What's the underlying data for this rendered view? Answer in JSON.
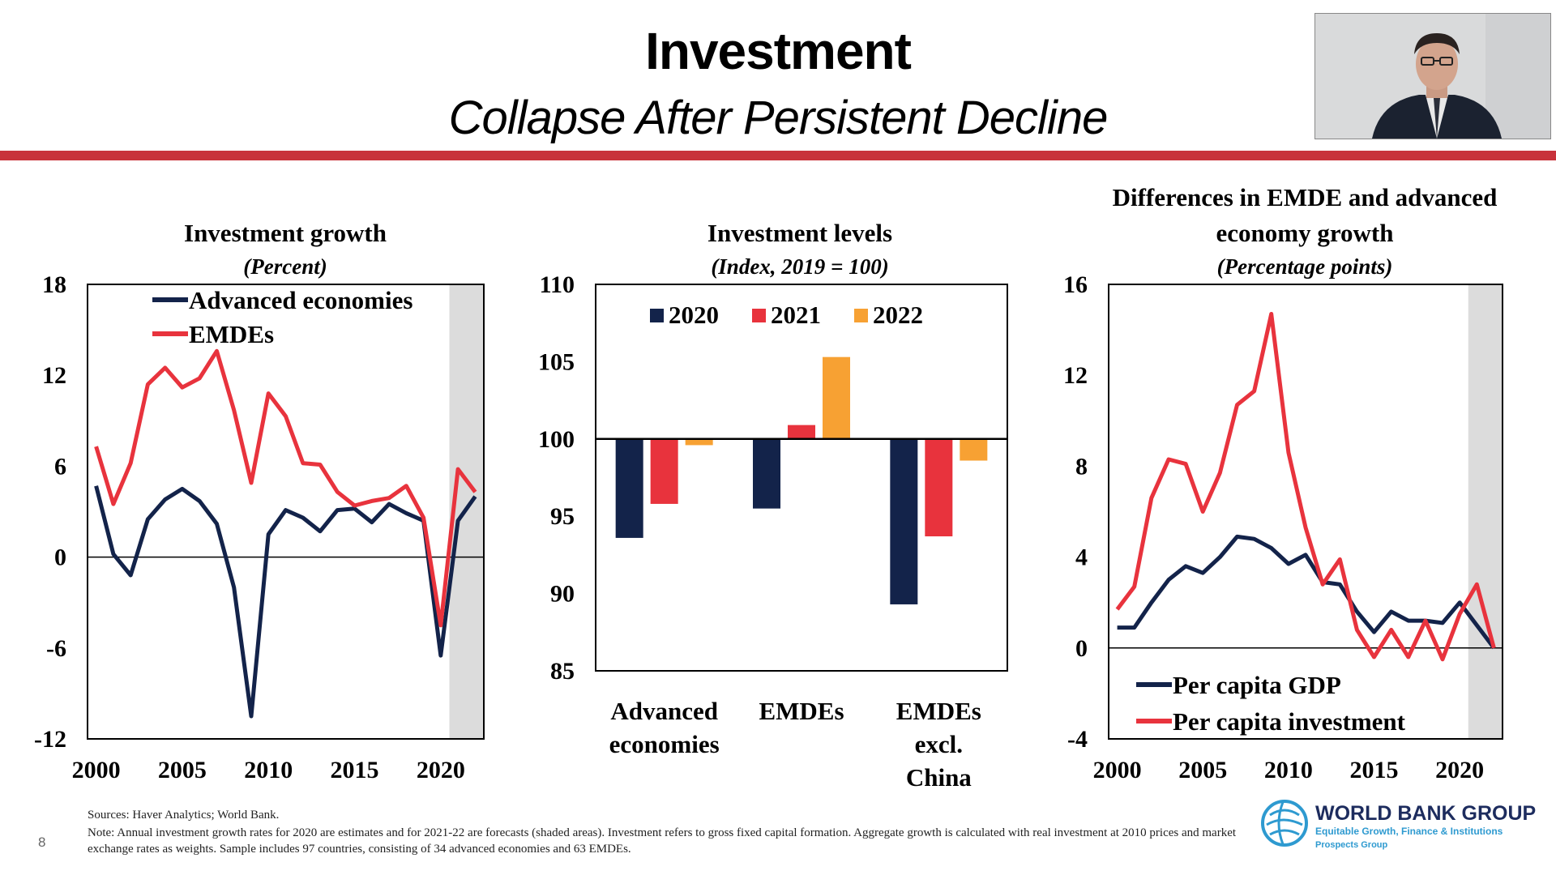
{
  "slide": {
    "title": "Investment",
    "subtitle": "Collapse After Persistent Decline",
    "sources": "Sources: Haver Analytics; World Bank.",
    "note": "Note: Annual investment growth rates for 2020 are estimates and for 2021-22 are forecasts (shaded areas). Investment refers to gross fixed capital formation. Aggregate growth is calculated with real investment at 2010 prices and market exchange rates as weights. Sample includes 97 countries, consisting of 34 advanced economies and 63 EMDEs.",
    "page_number": "8",
    "logo": {
      "name": "WORLD BANK GROUP",
      "tagline": "Equitable Growth, Finance & Institutions",
      "group": "Prospects Group"
    },
    "colors": {
      "accent_red": "#c8323b",
      "navy": "#13234a",
      "red": "#e8333d",
      "orange": "#f7a133",
      "shade": "#dcdcdc"
    }
  },
  "chart_data": [
    {
      "type": "line",
      "title": "Investment growth",
      "subtitle": "(Percent)",
      "ylim": [
        -12,
        18
      ],
      "yticks": [
        "18",
        "12",
        "6",
        "0",
        "-6",
        "-12"
      ],
      "xticks": [
        "2000",
        "2005",
        "2010",
        "2015",
        "2020"
      ],
      "shaded_from": 2020.5,
      "x": [
        2000,
        2001,
        2002,
        2003,
        2004,
        2005,
        2006,
        2007,
        2008,
        2009,
        2010,
        2011,
        2012,
        2013,
        2014,
        2015,
        2016,
        2017,
        2018,
        2019,
        2020,
        2021,
        2022
      ],
      "series": [
        {
          "name": "Advanced economies",
          "color": "#13234a",
          "values": [
            4.7,
            0.2,
            -1.2,
            2.5,
            3.8,
            4.5,
            3.7,
            2.2,
            -2.0,
            -10.5,
            1.5,
            3.1,
            2.6,
            1.7,
            3.1,
            3.2,
            2.3,
            3.5,
            2.9,
            2.4,
            -6.5,
            2.4,
            4.0
          ]
        },
        {
          "name": "EMDEs",
          "color": "#e8333d",
          "values": [
            7.3,
            3.5,
            6.2,
            11.4,
            12.5,
            11.2,
            11.8,
            13.6,
            9.7,
            4.9,
            10.8,
            9.3,
            6.2,
            6.1,
            4.3,
            3.4,
            3.7,
            3.9,
            4.7,
            2.6,
            -4.5,
            5.8,
            4.3
          ]
        }
      ]
    },
    {
      "type": "bar",
      "title": "Investment levels",
      "subtitle": "(Index, 2019 = 100)",
      "ylim": [
        85,
        110
      ],
      "yticks": [
        "110",
        "105",
        "100",
        "95",
        "90",
        "85"
      ],
      "baseline": 100,
      "categories": [
        "Advanced economies",
        "EMDEs",
        "EMDEs excl. China"
      ],
      "category_lines": [
        [
          "Advanced",
          "economies"
        ],
        [
          "EMDEs"
        ],
        [
          "EMDEs",
          "excl.",
          "China"
        ]
      ],
      "series": [
        {
          "name": "2020",
          "color": "#13234a",
          "values": [
            93.6,
            95.5,
            89.3
          ]
        },
        {
          "name": "2021",
          "color": "#e8333d",
          "values": [
            95.8,
            100.9,
            93.7
          ]
        },
        {
          "name": "2022",
          "color": "#f7a133",
          "values": [
            99.6,
            105.3,
            98.6
          ]
        }
      ]
    },
    {
      "type": "line",
      "title": "Differences in EMDE and advanced economy growth",
      "title_lines": [
        "Differences in EMDE and advanced",
        "economy growth"
      ],
      "subtitle": "(Percentage points)",
      "ylim": [
        -4,
        16
      ],
      "yticks": [
        "16",
        "12",
        "8",
        "4",
        "0",
        "-4"
      ],
      "xticks": [
        "2000",
        "2005",
        "2010",
        "2015",
        "2020"
      ],
      "shaded_from": 2020.5,
      "x": [
        2000,
        2001,
        2002,
        2003,
        2004,
        2005,
        2006,
        2007,
        2008,
        2009,
        2010,
        2011,
        2012,
        2013,
        2014,
        2015,
        2016,
        2017,
        2018,
        2019,
        2020,
        2021,
        2022
      ],
      "series": [
        {
          "name": "Per capita GDP",
          "color": "#13234a",
          "values": [
            0.9,
            0.9,
            2.0,
            3.0,
            3.6,
            3.3,
            4.0,
            4.9,
            4.8,
            4.4,
            3.7,
            4.1,
            2.9,
            2.8,
            1.6,
            0.7,
            1.6,
            1.2,
            1.2,
            1.1,
            2.0,
            1.0,
            0.0
          ]
        },
        {
          "name": "Per capita investment",
          "color": "#e8333d",
          "values": [
            1.7,
            2.7,
            6.6,
            8.3,
            8.1,
            6.0,
            7.7,
            10.7,
            11.3,
            14.7,
            8.6,
            5.3,
            2.8,
            3.9,
            0.8,
            -0.4,
            0.8,
            -0.4,
            1.2,
            -0.5,
            1.5,
            2.8,
            0.0
          ]
        }
      ]
    }
  ]
}
